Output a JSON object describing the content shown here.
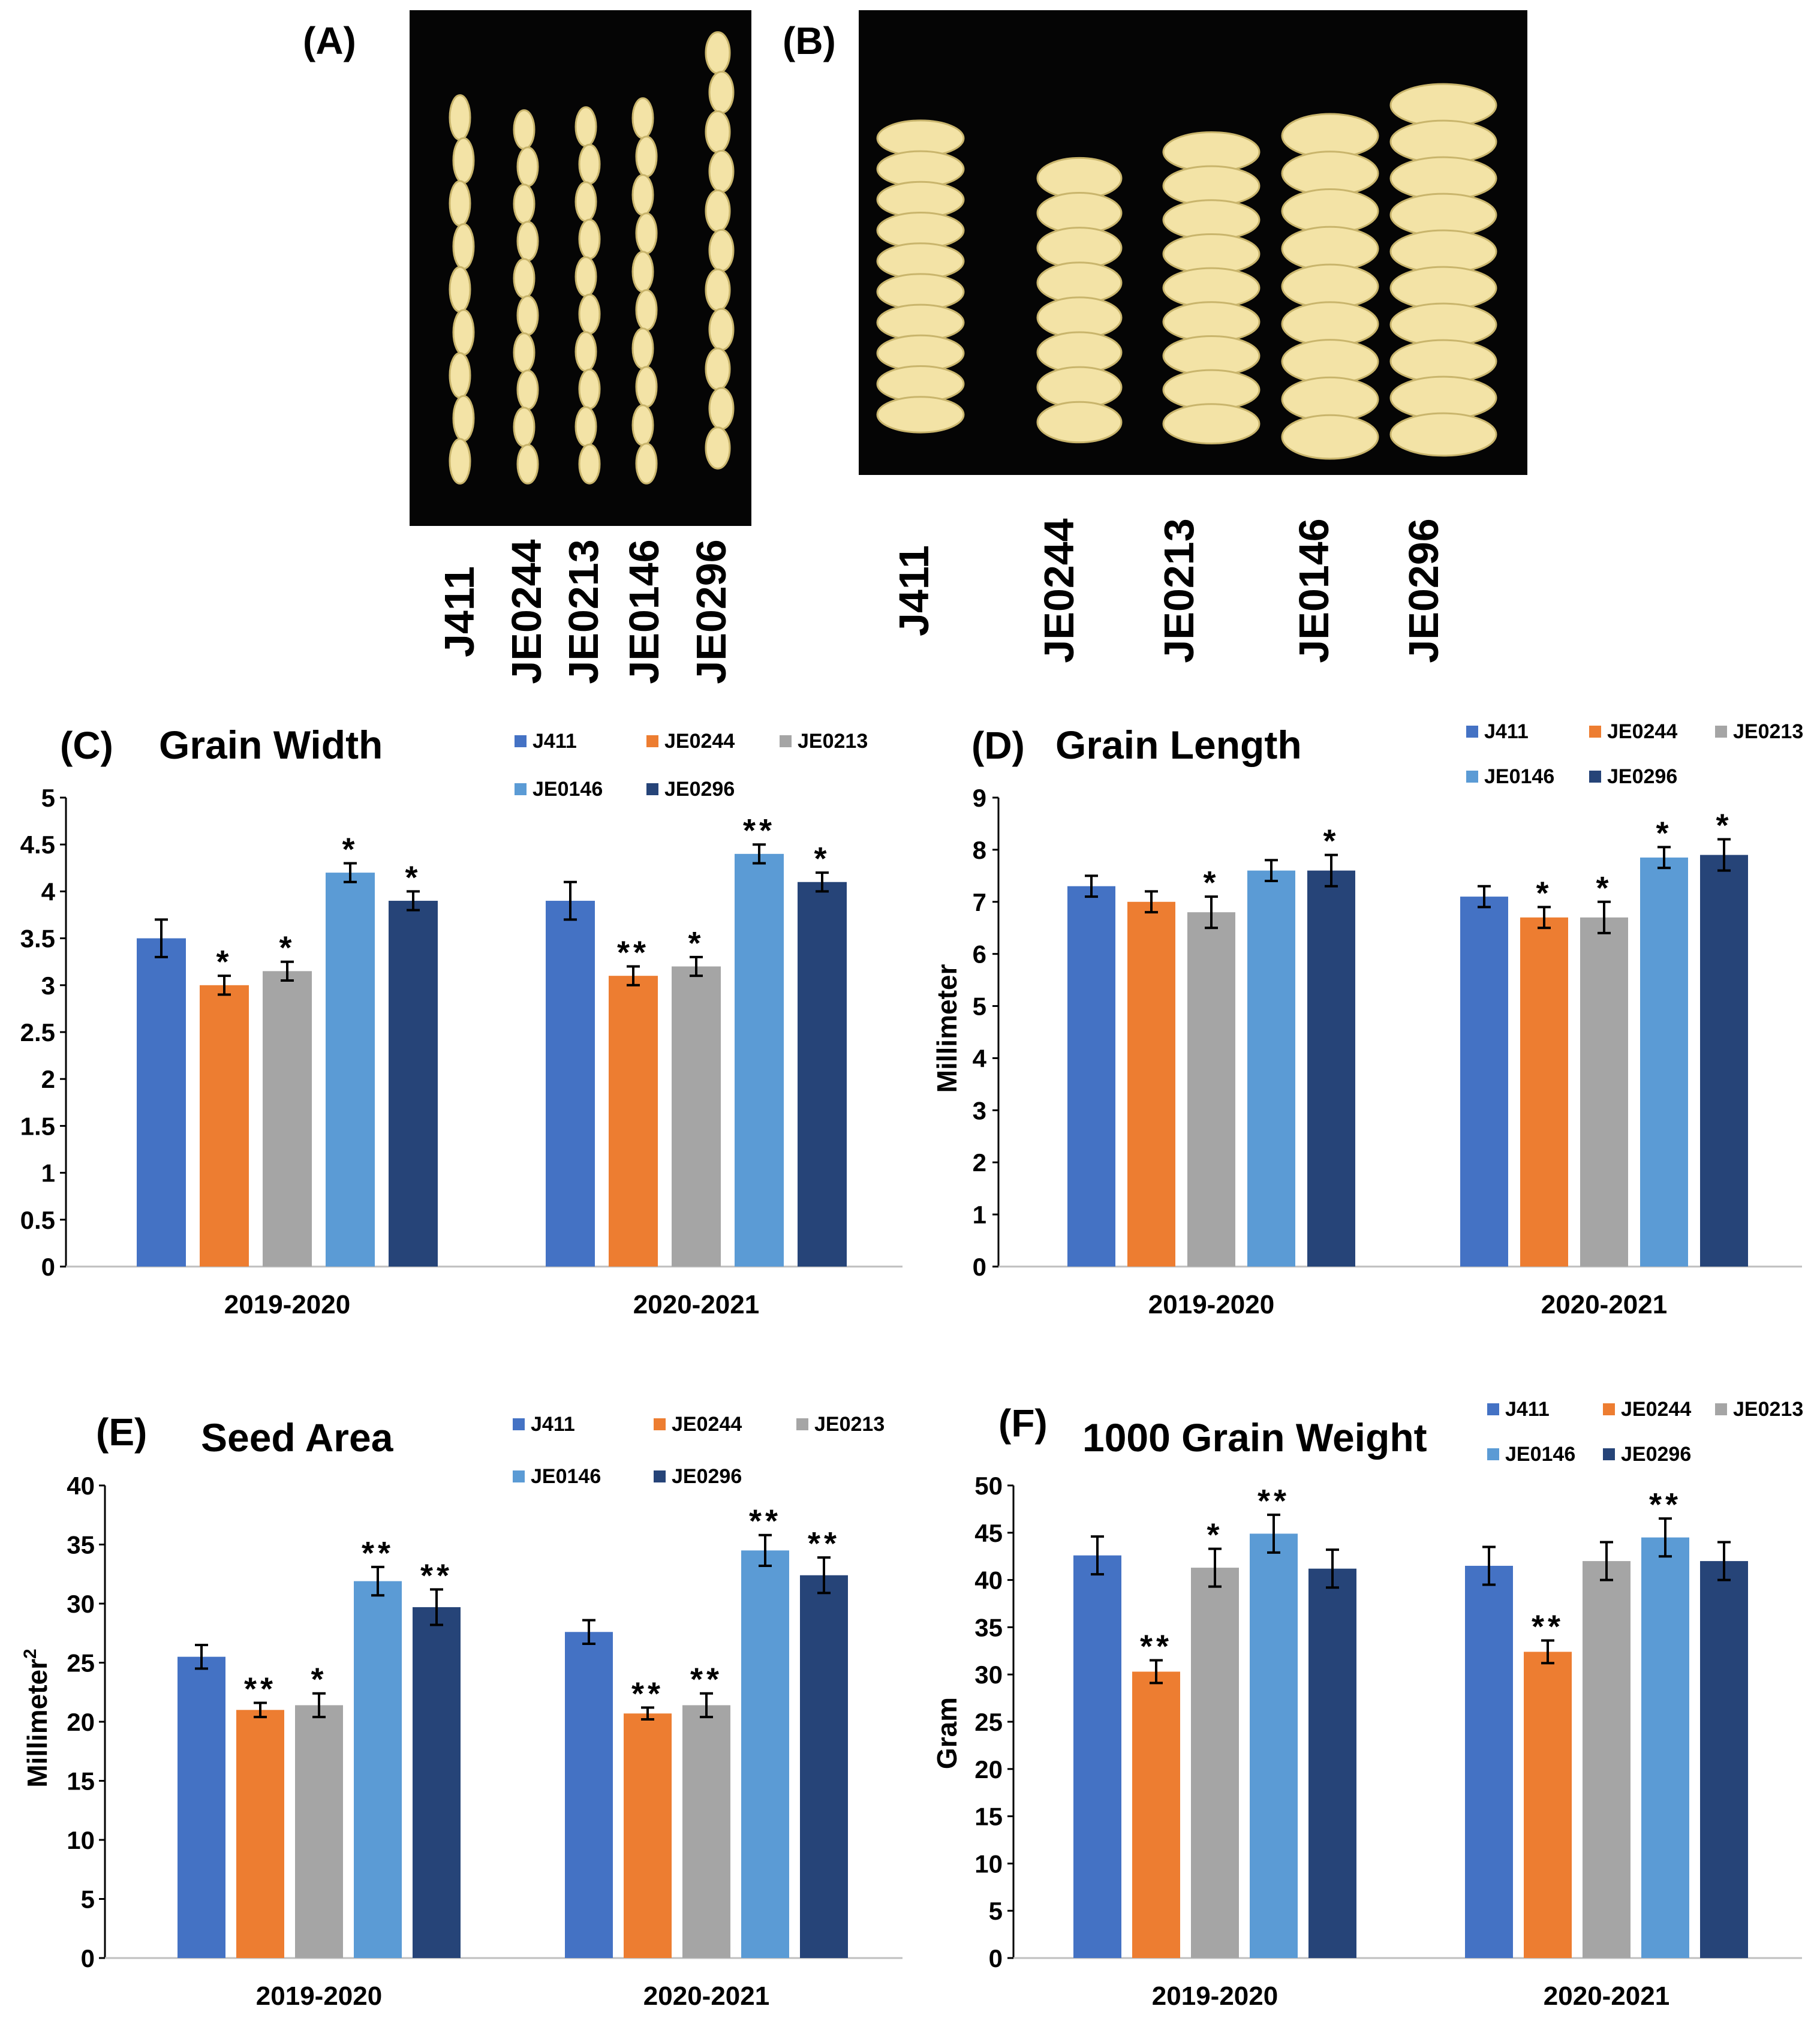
{
  "figure": {
    "panel_labels": {
      "A": "(A)",
      "B": "(B)",
      "C": "(C)",
      "D": "(D)",
      "E": "(E)",
      "F": "(F)"
    },
    "genotypes": [
      "J411",
      "JE0244",
      "JE0213",
      "JE0146",
      "JE0296"
    ],
    "colors": {
      "J411": "#4472C4",
      "JE0244": "#ED7D31",
      "JE0213": "#A5A5A5",
      "JE0146": "#5B9BD5",
      "JE0296": "#264478",
      "photo_bg": "#050505",
      "grain": "#F3E3A6",
      "grain_edge": "#C9B56C"
    },
    "photo_A_grain_counts": [
      9,
      10,
      10,
      10,
      11
    ],
    "photo_B_grain_counts": [
      10,
      8,
      9,
      9,
      10
    ]
  },
  "chart_data": [
    {
      "id": "C",
      "type": "bar",
      "title": "Grain Width",
      "xlabel": "",
      "ylabel": "",
      "ylim": [
        0,
        5
      ],
      "yticks": [
        0,
        0.5,
        1,
        1.5,
        2,
        2.5,
        3,
        3.5,
        4,
        4.5,
        5
      ],
      "categories": [
        "2019-2020",
        "2020-2021"
      ],
      "series": [
        {
          "name": "J411",
          "values": [
            3.5,
            3.9
          ],
          "errors": [
            0.2,
            0.2
          ],
          "sig": [
            "",
            ""
          ]
        },
        {
          "name": "JE0244",
          "values": [
            3.0,
            3.1
          ],
          "errors": [
            0.1,
            0.1
          ],
          "sig": [
            "*",
            "**"
          ]
        },
        {
          "name": "JE0213",
          "values": [
            3.15,
            3.2
          ],
          "errors": [
            0.1,
            0.1
          ],
          "sig": [
            "*",
            "*"
          ]
        },
        {
          "name": "JE0146",
          "values": [
            4.2,
            4.4
          ],
          "errors": [
            0.1,
            0.1
          ],
          "sig": [
            "*",
            "**"
          ]
        },
        {
          "name": "JE0296",
          "values": [
            3.9,
            4.1
          ],
          "errors": [
            0.1,
            0.1
          ],
          "sig": [
            "*",
            "*"
          ]
        }
      ]
    },
    {
      "id": "D",
      "type": "bar",
      "title": "Grain Length",
      "xlabel": "",
      "ylabel": "Millimeter",
      "ylim": [
        0,
        9
      ],
      "yticks": [
        0,
        1,
        2,
        3,
        4,
        5,
        6,
        7,
        8,
        9
      ],
      "categories": [
        "2019-2020",
        "2020-2021"
      ],
      "series": [
        {
          "name": "J411",
          "values": [
            7.3,
            7.1
          ],
          "errors": [
            0.2,
            0.2
          ],
          "sig": [
            "",
            ""
          ]
        },
        {
          "name": "JE0244",
          "values": [
            7.0,
            6.7
          ],
          "errors": [
            0.2,
            0.2
          ],
          "sig": [
            "",
            "*"
          ]
        },
        {
          "name": "JE0213",
          "values": [
            6.8,
            6.7
          ],
          "errors": [
            0.3,
            0.3
          ],
          "sig": [
            "*",
            "*"
          ]
        },
        {
          "name": "JE0146",
          "values": [
            7.6,
            7.85
          ],
          "errors": [
            0.2,
            0.2
          ],
          "sig": [
            "",
            "*"
          ]
        },
        {
          "name": "JE0296",
          "values": [
            7.6,
            7.9
          ],
          "errors": [
            0.3,
            0.3
          ],
          "sig": [
            "*",
            "*"
          ]
        }
      ]
    },
    {
      "id": "E",
      "type": "bar",
      "title": "Seed Area",
      "xlabel": "",
      "ylabel": "Millimeter",
      "ylabel_sup": "2",
      "ylim": [
        0,
        40
      ],
      "yticks": [
        0,
        5,
        10,
        15,
        20,
        25,
        30,
        35,
        40
      ],
      "categories": [
        "2019-2020",
        "2020-2021"
      ],
      "series": [
        {
          "name": "J411",
          "values": [
            25.5,
            27.6
          ],
          "errors": [
            1.0,
            1.0
          ],
          "sig": [
            "",
            ""
          ]
        },
        {
          "name": "JE0244",
          "values": [
            21.0,
            20.7
          ],
          "errors": [
            0.6,
            0.5
          ],
          "sig": [
            "**",
            "**"
          ]
        },
        {
          "name": "JE0213",
          "values": [
            21.4,
            21.4
          ],
          "errors": [
            1.0,
            1.0
          ],
          "sig": [
            "*",
            "**"
          ]
        },
        {
          "name": "JE0146",
          "values": [
            31.9,
            34.5
          ],
          "errors": [
            1.2,
            1.3
          ],
          "sig": [
            "**",
            "**"
          ]
        },
        {
          "name": "JE0296",
          "values": [
            29.7,
            32.4
          ],
          "errors": [
            1.5,
            1.5
          ],
          "sig": [
            "**",
            "**"
          ]
        }
      ]
    },
    {
      "id": "F",
      "type": "bar",
      "title": "1000 Grain Weight",
      "xlabel": "",
      "ylabel": "Gram",
      "ylim": [
        0,
        50
      ],
      "yticks": [
        0,
        5,
        10,
        15,
        20,
        25,
        30,
        35,
        40,
        45,
        50
      ],
      "categories": [
        "2019-2020",
        "2020-2021"
      ],
      "series": [
        {
          "name": "J411",
          "values": [
            42.6,
            41.5
          ],
          "errors": [
            2.0,
            2.0
          ],
          "sig": [
            "",
            ""
          ]
        },
        {
          "name": "JE0244",
          "values": [
            30.3,
            32.4
          ],
          "errors": [
            1.2,
            1.2
          ],
          "sig": [
            "**",
            "**"
          ]
        },
        {
          "name": "JE0213",
          "values": [
            41.3,
            42.0
          ],
          "errors": [
            2.0,
            2.0
          ],
          "sig": [
            "*",
            ""
          ]
        },
        {
          "name": "JE0146",
          "values": [
            44.9,
            44.5
          ],
          "errors": [
            2.0,
            2.0
          ],
          "sig": [
            "**",
            "**"
          ]
        },
        {
          "name": "JE0296",
          "values": [
            41.2,
            42.0
          ],
          "errors": [
            2.0,
            2.0
          ],
          "sig": [
            "",
            ""
          ]
        }
      ]
    }
  ]
}
